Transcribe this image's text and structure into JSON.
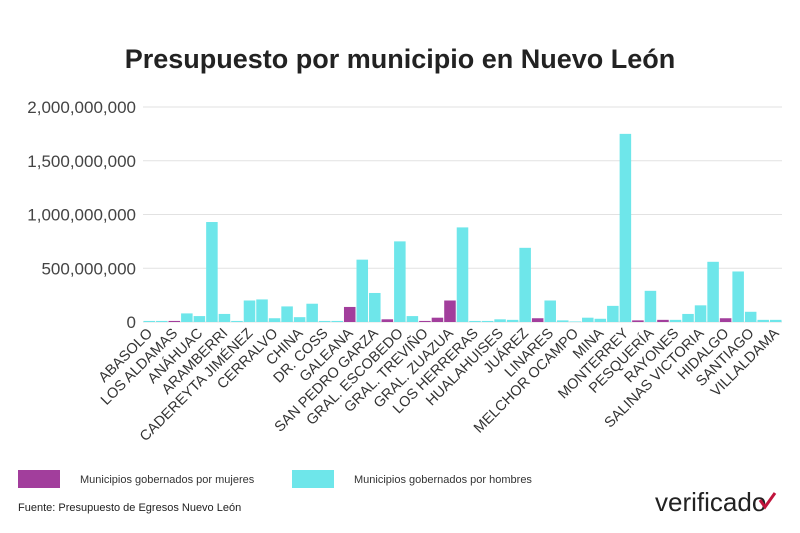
{
  "chart_data": {
    "type": "bar",
    "title": "Presupuesto por municipio en Nuevo León",
    "source": "Fuente: Presupuesto de Egresos Nuevo León",
    "brand": "verificado",
    "categories": [
      "ABASOLO",
      null,
      "LOS ALDAMAS",
      null,
      "ANÁHUAC",
      null,
      "ARAMBERRI",
      null,
      "CADEREYTA JIMÉNEZ",
      null,
      "CERRALVO",
      null,
      "CHINA",
      null,
      "DR. COSS",
      null,
      "GALEANA",
      null,
      "SAN PEDRO GARZA",
      null,
      "GRAL. ESCOBEDO",
      null,
      "GRAL. TREVIÑO",
      null,
      "GRAL. ZUAZUA",
      null,
      "LOS HERRERAS",
      null,
      "HUALAHUISES",
      null,
      "JUÁREZ",
      null,
      "LINARES",
      null,
      "MELCHOR OCAMPO",
      null,
      "MINA",
      null,
      "MONTERREY",
      null,
      "PESQUERÍA",
      null,
      "RAYONES",
      null,
      "SALINAS VICTORIA",
      null,
      "HIDALGO",
      null,
      "SANTIAGO",
      null,
      "VILLALDAMA"
    ],
    "series": [
      {
        "name": "Municipios gobernados por mujeres",
        "color": "#a23e9c",
        "values": [
          null,
          null,
          10000000,
          null,
          null,
          null,
          null,
          null,
          null,
          null,
          null,
          null,
          null,
          null,
          null,
          null,
          140000000,
          null,
          null,
          25000000,
          null,
          null,
          10000000,
          40000000,
          200000000,
          null,
          null,
          null,
          null,
          null,
          null,
          35000000,
          null,
          null,
          null,
          null,
          null,
          null,
          null,
          15000000,
          null,
          20000000,
          null,
          null,
          null,
          null,
          35000000,
          null,
          null,
          null,
          null
        ]
      },
      {
        "name": "Municipios gobernados por hombres",
        "color": "#6ee6ea",
        "values": [
          10000000,
          10000000,
          null,
          80000000,
          55000000,
          930000000,
          75000000,
          10000000,
          200000000,
          210000000,
          35000000,
          145000000,
          45000000,
          170000000,
          10000000,
          10000000,
          null,
          580000000,
          270000000,
          null,
          750000000,
          55000000,
          null,
          null,
          null,
          880000000,
          10000000,
          10000000,
          25000000,
          20000000,
          690000000,
          null,
          200000000,
          15000000,
          5000000,
          40000000,
          30000000,
          150000000,
          1750000000,
          null,
          290000000,
          null,
          20000000,
          75000000,
          155000000,
          560000000,
          null,
          470000000,
          95000000,
          20000000,
          20000000
        ]
      }
    ],
    "ylim": [
      0,
      2000000000
    ],
    "yticks": [
      0,
      {
        "value": 500000000,
        "label": "500,000,000"
      },
      {
        "value": 1000000000,
        "label": "1,000,000,000"
      },
      {
        "value": 1500000000,
        "label": "1,500,000,000"
      },
      {
        "value": 2000000000,
        "label": "2,000,000,000"
      }
    ],
    "grid": true
  }
}
